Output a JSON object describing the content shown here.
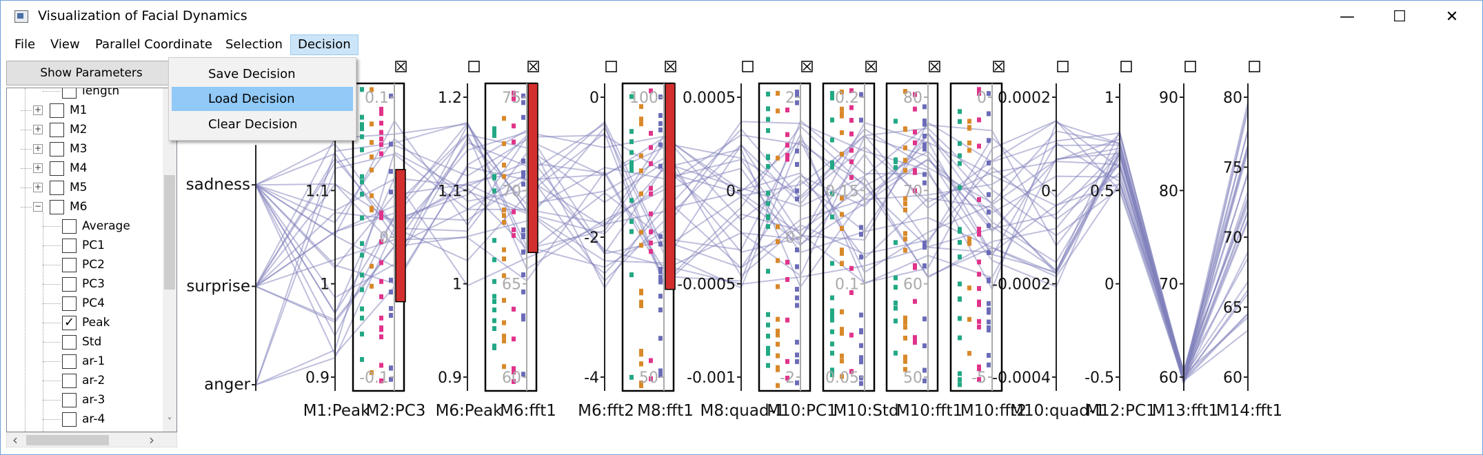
{
  "window": {
    "title": "Visualization of Facial Dynamics",
    "controls": [
      "—",
      "☐",
      "✕"
    ]
  },
  "menu": [
    "File",
    "View",
    "Parallel Coordinate",
    "Selection",
    "Decision"
  ],
  "decision_menu": [
    "Save Decision",
    "Load Decision",
    "Clear Decision"
  ],
  "left_panel": {
    "show_params_label": "Show Parameters",
    "tree_items": [
      {
        "label": "length",
        "indent": 1,
        "checked": false,
        "expander": ""
      },
      {
        "label": "M1",
        "indent": 0,
        "checked": false,
        "expander": "+"
      },
      {
        "label": "M2",
        "indent": 0,
        "checked": false,
        "expander": "+"
      },
      {
        "label": "M3",
        "indent": 0,
        "checked": false,
        "expander": "+"
      },
      {
        "label": "M4",
        "indent": 0,
        "checked": false,
        "expander": "+"
      },
      {
        "label": "M5",
        "indent": 0,
        "checked": false,
        "expander": "+"
      },
      {
        "label": "M6",
        "indent": 0,
        "checked": false,
        "expander": "−"
      },
      {
        "label": "Average",
        "indent": 1,
        "checked": false,
        "expander": ""
      },
      {
        "label": "PC1",
        "indent": 1,
        "checked": false,
        "expander": ""
      },
      {
        "label": "PC2",
        "indent": 1,
        "checked": false,
        "expander": ""
      },
      {
        "label": "PC3",
        "indent": 1,
        "checked": false,
        "expander": ""
      },
      {
        "label": "PC4",
        "indent": 1,
        "checked": false,
        "expander": ""
      },
      {
        "label": "Peak",
        "indent": 1,
        "checked": true,
        "expander": ""
      },
      {
        "label": "Std",
        "indent": 1,
        "checked": false,
        "expander": ""
      },
      {
        "label": "ar-1",
        "indent": 1,
        "checked": false,
        "expander": ""
      },
      {
        "label": "ar-2",
        "indent": 1,
        "checked": false,
        "expander": ""
      },
      {
        "label": "ar-3",
        "indent": 1,
        "checked": false,
        "expander": ""
      },
      {
        "label": "ar-4",
        "indent": 1,
        "checked": false,
        "expander": ""
      }
    ],
    "scroll_arrows": {
      "up": "˄",
      "down": "˅",
      "left": "‹",
      "right": "›"
    }
  },
  "chart_data": {
    "type": "parallel-coordinates",
    "line_color": "#8080bb",
    "selection_color": "#d32f2f",
    "group_colors": {
      "teal": "#22a884",
      "orange": "#d9892a",
      "pink": "#e0338a",
      "purple": "#6b6bb8"
    },
    "emotion_axis": {
      "ticks": [
        "sadness",
        "surprise",
        "anger"
      ]
    },
    "axes": [
      {
        "name": "M1:Peak",
        "ticks": [
          "1.2",
          "1.1",
          "1",
          "0.9"
        ],
        "selected": false,
        "has_checkbox": false
      },
      {
        "name": "M2:PC3",
        "ticks": [
          "0.1",
          "0",
          "-0.1"
        ],
        "selected": true,
        "has_checkbox": true,
        "checkbox_marked": true
      },
      {
        "name": "M6:Peak",
        "ticks": [
          "1.2",
          "1.1",
          "1",
          "0.9"
        ],
        "selected": false,
        "has_checkbox": true,
        "checkbox_marked": false
      },
      {
        "name": "M6:fft1",
        "ticks": [
          "75",
          "70",
          "65",
          "60"
        ],
        "selected": true,
        "has_checkbox": true,
        "checkbox_marked": true
      },
      {
        "name": "M6:fft2",
        "ticks": [
          "0",
          "-2",
          "-4"
        ],
        "selected": false,
        "has_checkbox": true,
        "checkbox_marked": false
      },
      {
        "name": "M8:fft1",
        "ticks": [
          "100",
          "50"
        ],
        "selected": true,
        "has_checkbox": true,
        "checkbox_marked": true
      },
      {
        "name": "M8:quad-1",
        "ticks": [
          "0.0005",
          "0",
          "-0.0005",
          "-0.001"
        ],
        "selected": false,
        "has_checkbox": true,
        "checkbox_marked": false
      },
      {
        "name": "M10:PC1",
        "ticks": [
          "2",
          "0",
          "-2"
        ],
        "selected": false,
        "has_checkbox": true,
        "checkbox_marked": true
      },
      {
        "name": "M10:Std",
        "ticks": [
          "0.2",
          "0.15",
          "0.1",
          "0.05"
        ],
        "selected": false,
        "has_checkbox": true,
        "checkbox_marked": true
      },
      {
        "name": "M10:fft1",
        "ticks": [
          "80",
          "70",
          "60",
          "50"
        ],
        "selected": false,
        "has_checkbox": true,
        "checkbox_marked": true
      },
      {
        "name": "M10:fft2",
        "ticks": [
          "0",
          "-5"
        ],
        "selected": false,
        "has_checkbox": true,
        "checkbox_marked": true
      },
      {
        "name": "M10:quad-1",
        "ticks": [
          "0.0002",
          "0",
          "-0.0002",
          "-0.0004"
        ],
        "selected": false,
        "has_checkbox": true,
        "checkbox_marked": false
      },
      {
        "name": "M12:PC1",
        "ticks": [
          "1",
          "0.5",
          "0",
          "-0.5"
        ],
        "selected": false,
        "has_checkbox": true,
        "checkbox_marked": false
      },
      {
        "name": "M13:fft1",
        "ticks": [
          "90",
          "80",
          "70",
          "60"
        ],
        "selected": false,
        "has_checkbox": true,
        "checkbox_marked": false
      },
      {
        "name": "M14:fft1",
        "ticks": [
          "80",
          "75",
          "70",
          "65",
          "60"
        ],
        "selected": false,
        "has_checkbox": true,
        "checkbox_marked": false
      }
    ]
  }
}
